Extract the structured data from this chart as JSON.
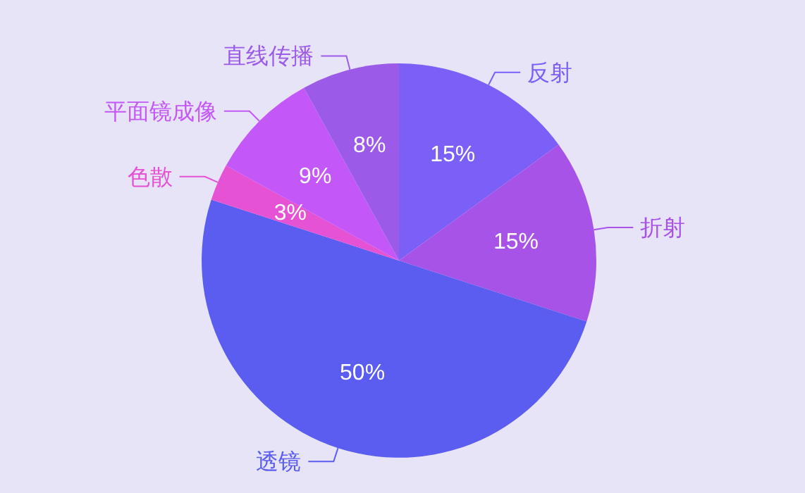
{
  "chart_data": {
    "type": "pie",
    "categories": [
      "反射",
      "折射",
      "透镜",
      "色散",
      "平面镜成像",
      "直线传播"
    ],
    "values": [
      15,
      15,
      50,
      3,
      9,
      8
    ],
    "value_labels": [
      "15%",
      "15%",
      "50%",
      "3%",
      "9%",
      "8%"
    ],
    "colors": [
      "#7b5ff6",
      "#a853e8",
      "#5b5cf0",
      "#e552d4",
      "#c457f7",
      "#9c5ae9"
    ]
  }
}
